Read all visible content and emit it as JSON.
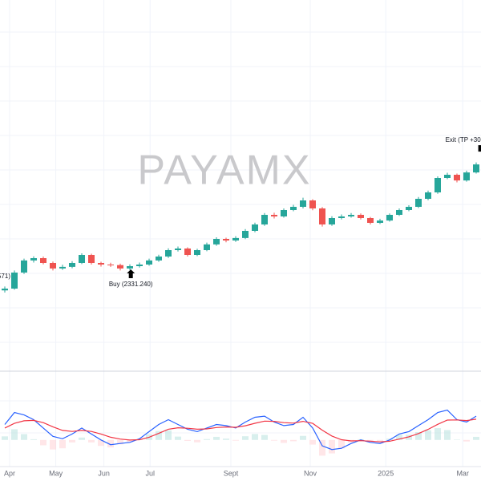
{
  "chart_data": [
    {
      "type": "candlestick",
      "watermark": "PAYAMX",
      "up_color": "#26a69a",
      "down_color": "#ef5350",
      "xlim": [
        0,
        50
      ],
      "ylim": [
        1791,
        3870
      ],
      "open": [
        2240,
        2250,
        2340,
        2408,
        2421,
        2394,
        2363,
        2372,
        2394,
        2439,
        2394,
        2385,
        2382,
        2363,
        2376,
        2385,
        2408,
        2430,
        2466,
        2475,
        2439,
        2466,
        2498,
        2529,
        2520,
        2534,
        2574,
        2610,
        2664,
        2655,
        2691,
        2709,
        2745,
        2700,
        2610,
        2646,
        2655,
        2664,
        2646,
        2619,
        2632,
        2664,
        2691,
        2709,
        2754,
        2790,
        2871,
        2889,
        2857,
        2902
      ],
      "high": [
        2262,
        2352,
        2418,
        2431,
        2430,
        2402,
        2384,
        2404,
        2448,
        2446,
        2401,
        2395,
        2390,
        2386,
        2396,
        2418,
        2440,
        2476,
        2486,
        2482,
        2474,
        2508,
        2538,
        2536,
        2544,
        2584,
        2620,
        2674,
        2676,
        2700,
        2720,
        2760,
        2752,
        2708,
        2656,
        2666,
        2674,
        2672,
        2652,
        2642,
        2672,
        2700,
        2718,
        2764,
        2800,
        2880,
        2900,
        2896,
        2912,
        2958
      ],
      "low": [
        2228,
        2244,
        2332,
        2396,
        2386,
        2352,
        2355,
        2364,
        2388,
        2385,
        2374,
        2372,
        2352,
        2354,
        2368,
        2378,
        2400,
        2422,
        2458,
        2430,
        2432,
        2460,
        2490,
        2510,
        2512,
        2528,
        2566,
        2602,
        2644,
        2648,
        2684,
        2700,
        2690,
        2598,
        2602,
        2638,
        2648,
        2638,
        2610,
        2612,
        2626,
        2658,
        2684,
        2702,
        2746,
        2782,
        2864,
        2846,
        2850,
        2896
      ],
      "close": [
        2250,
        2340,
        2408,
        2421,
        2394,
        2363,
        2372,
        2394,
        2439,
        2394,
        2385,
        2382,
        2363,
        2376,
        2385,
        2408,
        2430,
        2466,
        2475,
        2439,
        2466,
        2498,
        2529,
        2520,
        2534,
        2574,
        2610,
        2664,
        2655,
        2691,
        2709,
        2745,
        2700,
        2610,
        2646,
        2655,
        2664,
        2646,
        2619,
        2632,
        2664,
        2691,
        2709,
        2754,
        2790,
        2871,
        2889,
        2857,
        2902,
        2947
      ],
      "annotations": [
        {
          "text": "Buy (2331.240)",
          "x": 13.6,
          "y": 2331,
          "marker": "up-arrow"
        },
        {
          "text": "Exit (TP +30.",
          "x": 49.8,
          "y": 3037,
          "marker": "flag"
        },
        {
          "text": "571)",
          "x": 0.5,
          "y": 2317,
          "marker": "none"
        }
      ]
    },
    {
      "type": "macd",
      "xlim": [
        0,
        50
      ],
      "ylim": [
        -21,
        53
      ],
      "xticks": [
        {
          "value": 1,
          "label": "Apr"
        },
        {
          "value": 5.8,
          "label": "May"
        },
        {
          "value": 10.8,
          "label": "Jun"
        },
        {
          "value": 15.6,
          "label": "Jul"
        },
        {
          "value": 24,
          "label": "Sept"
        },
        {
          "value": 32.25,
          "label": "Nov"
        },
        {
          "value": 40.1,
          "label": "2025"
        },
        {
          "value": 48.1,
          "label": "Mar"
        }
      ],
      "histogram": {
        "up_color": "#b2dfdb",
        "down_color": "#ffcdd2",
        "values": [
          3.0,
          9.0,
          4.9,
          0.6,
          -4.5,
          -8.0,
          -7.0,
          -2.1,
          2.0,
          -2.1,
          -5.0,
          -6.3,
          -3.7,
          -1.9,
          0.8,
          4.7,
          7.5,
          8.0,
          2.8,
          -0.8,
          -2.0,
          0.7,
          2.6,
          1.1,
          -0.6,
          3.1,
          5.0,
          4.2,
          -0.6,
          -2.5,
          -1.1,
          3.4,
          -3.9,
          -13.2,
          -11.3,
          -7.2,
          -2.2,
          0.6,
          -1.0,
          -1.4,
          1.1,
          4.3,
          4.4,
          6.6,
          8.1,
          9.9,
          8.3,
          0.2,
          -1.3,
          2.6
        ]
      },
      "series": [
        {
          "color": "#2962ff",
          "values": [
            13,
            23,
            21,
            17,
            10,
            3,
            1,
            5,
            10,
            5,
            0,
            -4,
            -3,
            -2,
            1,
            7,
            13,
            17,
            13,
            9,
            7,
            10,
            13,
            12,
            10,
            15,
            19,
            20,
            15,
            12,
            13,
            19,
            10,
            -5,
            -8,
            -7,
            -3,
            0,
            -2,
            -3,
            0,
            5,
            7,
            12,
            17,
            23,
            25,
            17,
            15,
            20
          ]
        },
        {
          "color": "#f23645",
          "values": [
            10,
            13.9,
            16.1,
            16.4,
            14.5,
            11,
            8,
            7.1,
            8,
            7.1,
            5,
            2.3,
            0.7,
            -0.1,
            0.2,
            2.3,
            5.5,
            9,
            10.2,
            9.8,
            9,
            9.3,
            10.4,
            10.9,
            10.6,
            11.9,
            14,
            15.8,
            15.6,
            14.5,
            14.1,
            15.6,
            13.9,
            8.2,
            3.3,
            0.2,
            -0.8,
            -0.6,
            -1,
            -1.6,
            -1.1,
            0.7,
            2.6,
            5.4,
            8.9,
            13.1,
            16.7,
            16.8,
            16.3,
            17.4
          ]
        }
      ]
    }
  ]
}
